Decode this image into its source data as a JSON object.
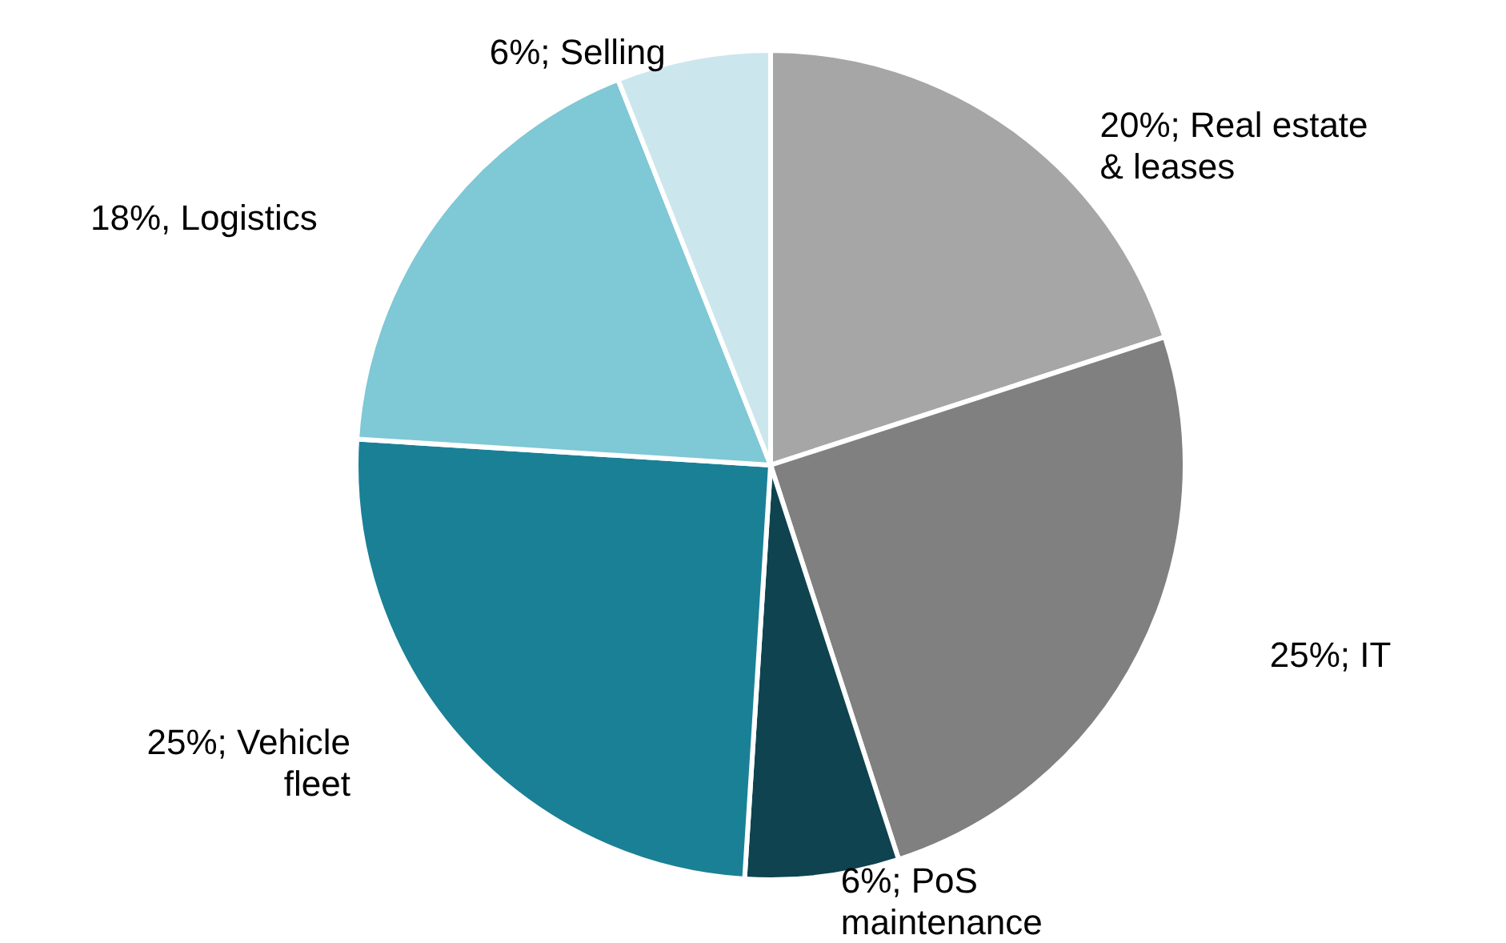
{
  "chart_data": {
    "type": "pie",
    "categories": [
      "20%; Real estate & leases",
      "25%; IT",
      "6%; PoS maintenance",
      "25%; Vehicle fleet",
      "18%, Logistics",
      "6%; Selling"
    ],
    "values": [
      20,
      25,
      6,
      25,
      18,
      6
    ],
    "colors": [
      "#a6a6a6",
      "#808080",
      "#0e434f",
      "#1a8096",
      "#7fc8d5",
      "#cce6ed"
    ]
  }
}
